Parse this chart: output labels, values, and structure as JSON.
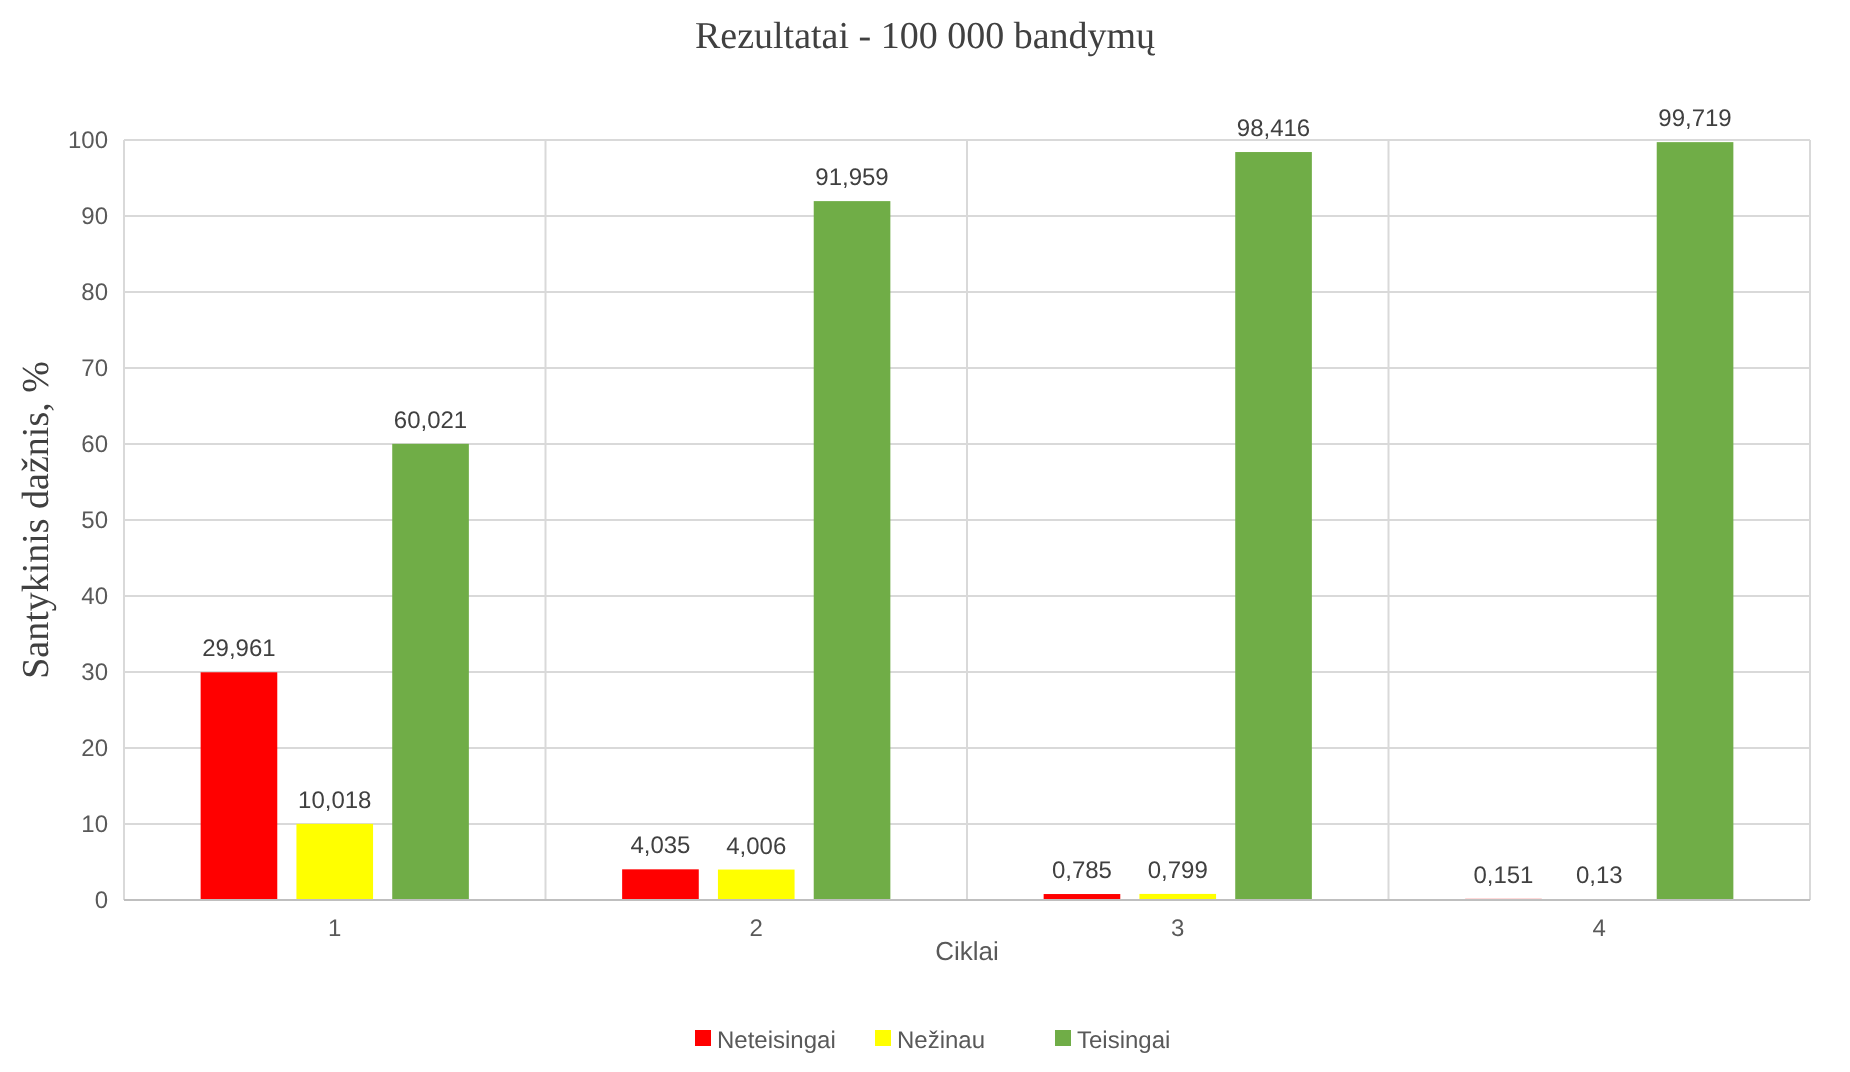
{
  "chart_data": {
    "type": "bar",
    "title": "Rezultatai - 100 000 bandymų",
    "xlabel": "Ciklai",
    "ylabel": "Santykinis dažnis, %",
    "categories": [
      "1",
      "2",
      "3",
      "4"
    ],
    "series": [
      {
        "name": "Neteisingai",
        "color": "#ff0000",
        "values": [
          29.961,
          4.035,
          0.785,
          0.151
        ],
        "value_labels": [
          "29,961",
          "4,035",
          "0,785",
          "0,151"
        ]
      },
      {
        "name": "Nežinau",
        "color": "#ffff00",
        "values": [
          10.018,
          4.006,
          0.799,
          0.13
        ],
        "value_labels": [
          "10,018",
          "4,006",
          "0,799",
          "0,13"
        ]
      },
      {
        "name": "Teisingai",
        "color": "#70ad47",
        "values": [
          60.021,
          91.959,
          98.416,
          99.719
        ],
        "value_labels": [
          "60,021",
          "91,959",
          "98,416",
          "99,719"
        ]
      }
    ],
    "ylim": [
      0,
      100
    ],
    "yticks": [
      0,
      10,
      20,
      30,
      40,
      50,
      60,
      70,
      80,
      90,
      100
    ],
    "grid": true,
    "legend": "bottom"
  }
}
